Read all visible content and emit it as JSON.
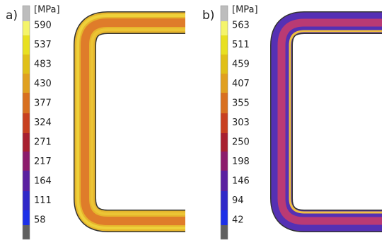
{
  "panels": [
    {
      "label": "a)",
      "unit": "[MPa]",
      "legend_labels": [
        "590",
        "537",
        "483",
        "430",
        "377",
        "324",
        "271",
        "217",
        "164",
        "111",
        "58"
      ]
    },
    {
      "label": "b)",
      "unit": "[MPa]",
      "legend_labels": [
        "563",
        "511",
        "459",
        "407",
        "355",
        "303",
        "250",
        "198",
        "146",
        "94",
        "42"
      ]
    }
  ]
}
